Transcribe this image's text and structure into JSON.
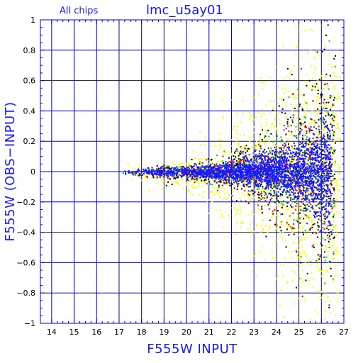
{
  "chart_data": {
    "type": "scatter",
    "title": "lmc_u5ay01",
    "subtitle": "All chips",
    "xlabel": "F555W INPUT",
    "ylabel": "F555W (OBS−INPUT)",
    "xlim": [
      13.5,
      27
    ],
    "ylim": [
      -1,
      1
    ],
    "x_ticks": [
      14,
      15,
      16,
      17,
      18,
      19,
      20,
      21,
      22,
      23,
      24,
      25,
      26,
      27
    ],
    "x_tick_labels": [
      "14",
      "15",
      "16",
      "17",
      "18",
      "19",
      "20",
      "21",
      "22",
      "23",
      "24",
      "25",
      "26",
      "27"
    ],
    "y_ticks": [
      -1,
      -0.8,
      -0.6,
      -0.4,
      -0.2,
      0,
      0.2,
      0.4,
      0.6,
      0.8,
      1
    ],
    "y_tick_labels": [
      "−1",
      "−0.8",
      "−0.6",
      "−0.4",
      "−0.2",
      "0",
      "0.2",
      "0.4",
      "0.6",
      "0.8",
      "1"
    ],
    "grid": true,
    "axis_color": "#0000cc",
    "grid_color": "#0000cc",
    "series": [
      {
        "color": "#ffff00",
        "x_range": [
          17.0,
          26.8
        ],
        "spread": [
          [
            17,
            0.03
          ],
          [
            20,
            0.1
          ],
          [
            22,
            0.35
          ],
          [
            24,
            0.6
          ],
          [
            26,
            0.9
          ]
        ],
        "bias": -0.06
      },
      {
        "color": "#000000",
        "x_range": [
          17.0,
          26.6
        ],
        "spread": [
          [
            17,
            0.02
          ],
          [
            20,
            0.06
          ],
          [
            22,
            0.12
          ],
          [
            24,
            0.3
          ],
          [
            26,
            0.7
          ]
        ],
        "bias": 0.0
      },
      {
        "color": "#ff0000",
        "x_range": [
          17.0,
          26.6
        ],
        "spread": [
          [
            17,
            0.02
          ],
          [
            20,
            0.05
          ],
          [
            22,
            0.1
          ],
          [
            24,
            0.25
          ],
          [
            26,
            0.6
          ]
        ],
        "bias": 0.0
      },
      {
        "color": "#00cc00",
        "x_range": [
          17.0,
          26.6
        ],
        "spread": [
          [
            17,
            0.02
          ],
          [
            20,
            0.05
          ],
          [
            22,
            0.1
          ],
          [
            24,
            0.25
          ],
          [
            26,
            0.6
          ]
        ],
        "bias": 0.0
      },
      {
        "color": "#1a1aff",
        "x_range": [
          16.9,
          26.4
        ],
        "spread": [
          [
            17,
            0.02
          ],
          [
            20,
            0.03
          ],
          [
            22,
            0.06
          ],
          [
            24,
            0.12
          ],
          [
            25.5,
            0.22
          ],
          [
            26,
            0.35
          ]
        ],
        "bias": 0.0
      }
    ]
  }
}
